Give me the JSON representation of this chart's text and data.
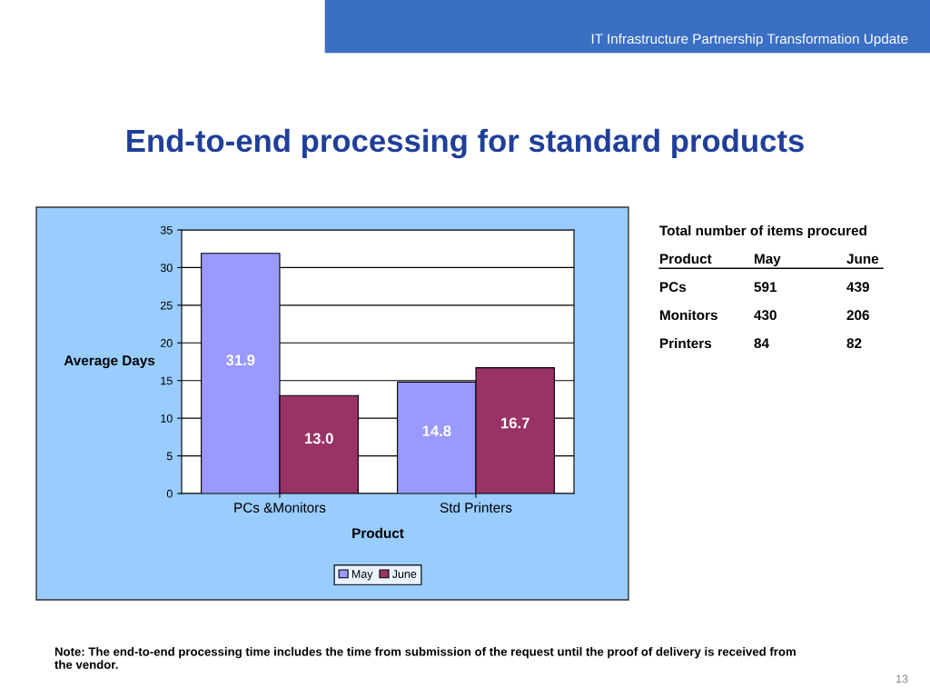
{
  "chart_data": [
    {
      "type": "bar",
      "title": "End-to-end processing for standard products",
      "xlabel": "Product",
      "ylabel": "Average Days",
      "categories": [
        "PCs &Monitors",
        "Std Printers"
      ],
      "series": [
        {
          "name": "May",
          "color": "#9999ff",
          "values": [
            31.9,
            14.8
          ],
          "value_labels": [
            "31.9",
            "14.8"
          ]
        },
        {
          "name": "June",
          "color": "#993366",
          "values": [
            13.0,
            16.7
          ],
          "value_labels": [
            "13.0",
            "16.7"
          ]
        }
      ],
      "ylim": [
        0,
        35
      ],
      "yticks": [
        0,
        5,
        10,
        15,
        20,
        25,
        30,
        35
      ],
      "grid": "y",
      "legend": "bottom",
      "annotations": [
        "IT Infrastructure Partnership Transformation Update",
        "Note: The end-to-end processing time includes the time from submission of the request until the proof of delivery is received from the vendor.",
        "13"
      ]
    },
    {
      "type": "other",
      "title": "Total number of items procured",
      "annotations": [
        "Product\tMay\tJune",
        "PCs\t591\t439",
        "Monitors\t430\t206",
        "Printers\t84\t82"
      ]
    }
  ]
}
